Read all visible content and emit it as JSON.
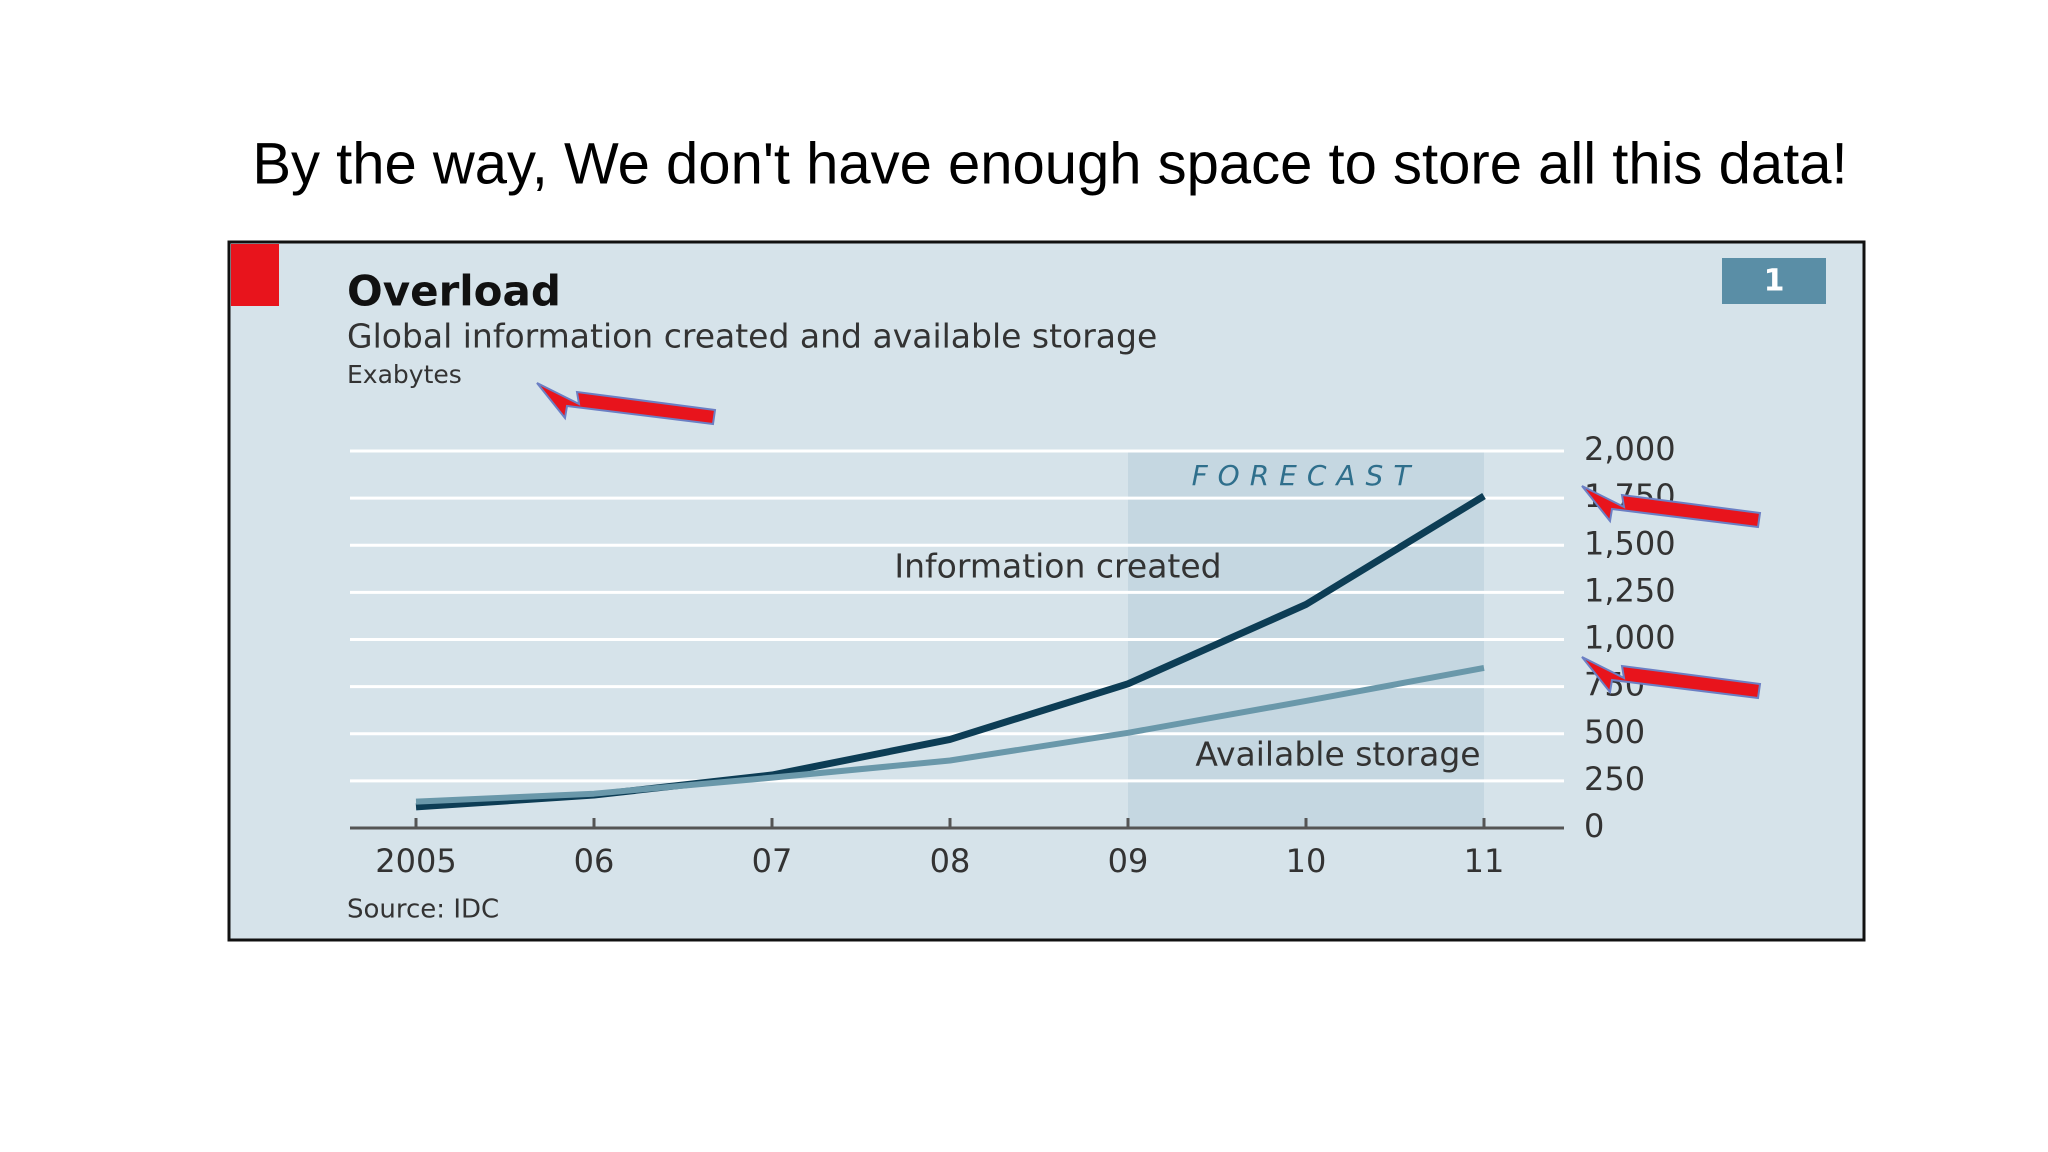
{
  "heading": "By the way, We don't have enough space to store all this data!",
  "chart_data": {
    "type": "line",
    "title": "Overload",
    "subtitle": "Global information created and available storage",
    "unit_label": "Exabytes",
    "badge": "1",
    "annotation": "FORECAST",
    "source": "Source: IDC",
    "categories": [
      "2005",
      "06",
      "07",
      "08",
      "09",
      "10",
      "11"
    ],
    "series": [
      {
        "name": "Information created",
        "color": "#0d3d55",
        "values": [
          112,
          175,
          281,
          470,
          765,
          1186,
          1761
        ]
      },
      {
        "name": "Available storage",
        "color": "#6a98aa",
        "values": [
          140,
          182,
          267,
          358,
          505,
          674,
          849
        ]
      }
    ],
    "ylim": [
      0,
      2000
    ],
    "yticks": [
      0,
      250,
      500,
      750,
      {
        "value": 1000,
        "label": "1,000"
      },
      {
        "value": 1250,
        "label": "1,250"
      },
      {
        "value": 1500,
        "label": "1,500"
      },
      {
        "value": 1750,
        "label": "1,750"
      },
      {
        "value": 2000,
        "label": "2,000"
      }
    ],
    "grid": true
  }
}
